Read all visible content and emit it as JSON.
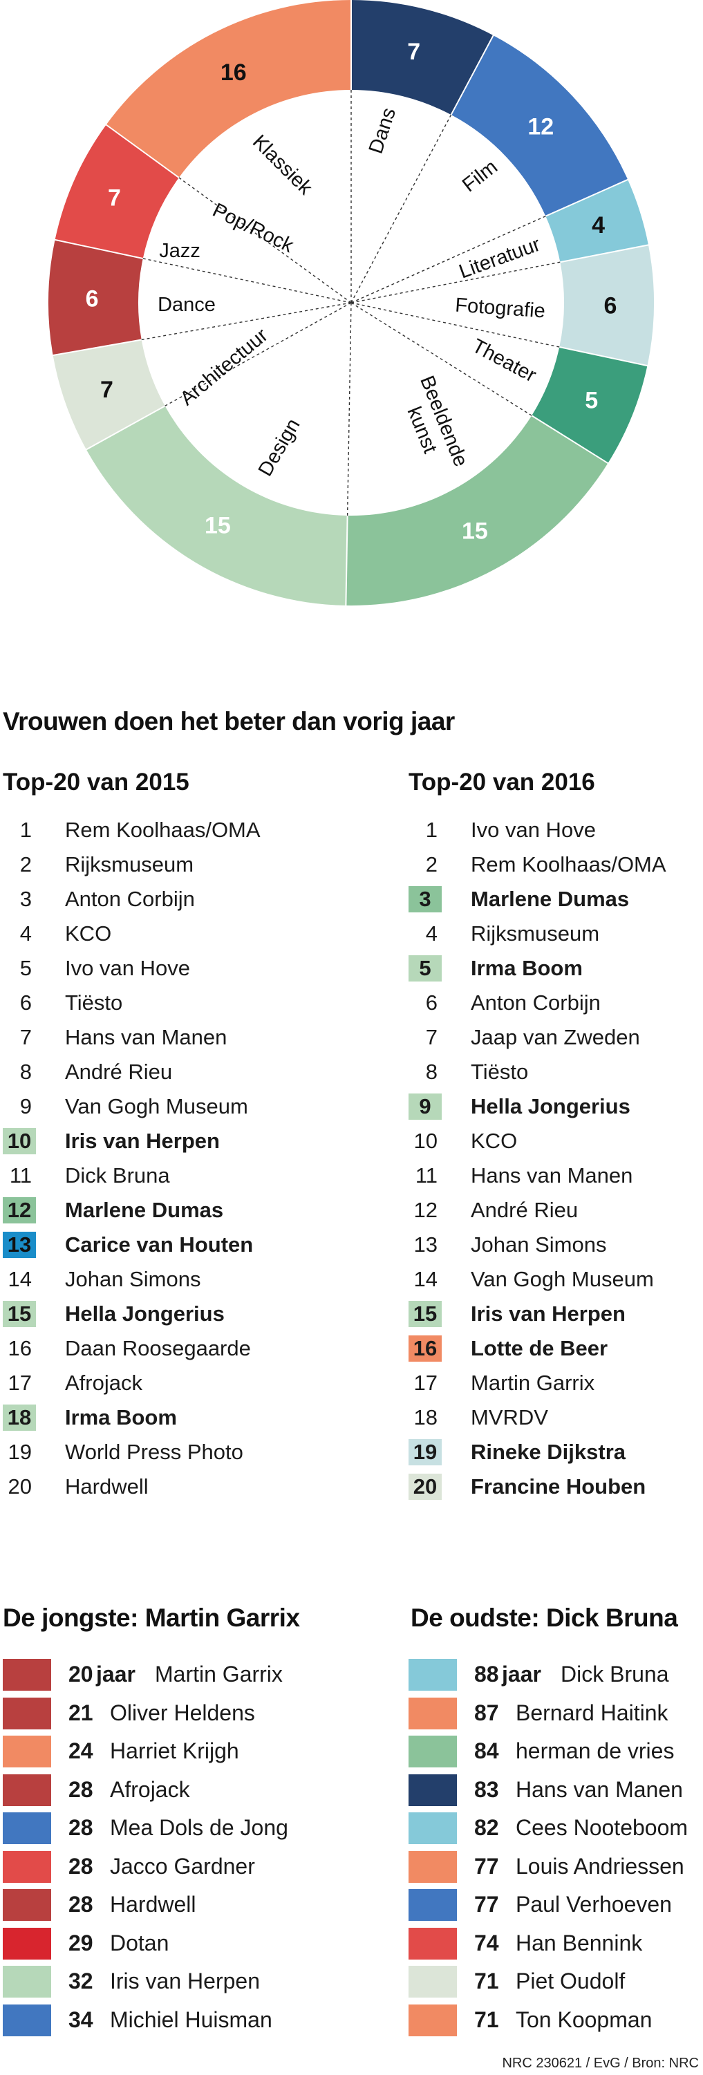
{
  "chart_data": [
    {
      "type": "pie",
      "variant": "donut",
      "segments": [
        {
          "name": "Dans",
          "value": 7,
          "color": "#233f6b"
        },
        {
          "name": "Film",
          "value": 12,
          "color": "#4177c0"
        },
        {
          "name": "Literatuur",
          "value": 4,
          "color": "#85c9d9"
        },
        {
          "name": "Fotografie",
          "value": 6,
          "color": "#c7e0e2"
        },
        {
          "name": "Theater",
          "value": 5,
          "color": "#3b9e7c"
        },
        {
          "name": "Beeldende kunst",
          "value": 15,
          "color": "#8bc39a"
        },
        {
          "name": "Design",
          "value": 15,
          "color": "#b6d8b9"
        },
        {
          "name": "Architectuur",
          "value": 7,
          "color": "#dce5d8"
        },
        {
          "name": "Dance",
          "value": 6,
          "color": "#b8403f"
        },
        {
          "name": "Jazz",
          "value": null,
          "color": null
        },
        {
          "name": "Pop/Rock",
          "value": 7,
          "color": "#e24b49"
        },
        {
          "name": "Klassiek",
          "value": 16,
          "color": "#f18a63"
        }
      ]
    },
    {
      "type": "table",
      "title": "Vrouwen doen het beter dan vorig jaar",
      "columns": [
        {
          "title": "Top-20 van 2015",
          "rows": [
            {
              "rank": "1",
              "name": "Rem Koolhaas/OMA"
            },
            {
              "rank": "2",
              "name": "Rijksmuseum"
            },
            {
              "rank": "3",
              "name": "Anton Corbijn"
            },
            {
              "rank": "4",
              "name": "KCO"
            },
            {
              "rank": "5",
              "name": "Ivo van Hove"
            },
            {
              "rank": "6",
              "name": "Tiësto"
            },
            {
              "rank": "7",
              "name": "Hans van Manen"
            },
            {
              "rank": "8",
              "name": "André Rieu"
            },
            {
              "rank": "9",
              "name": "Van Gogh Museum"
            },
            {
              "rank": "10",
              "name": "Iris van Herpen",
              "highlight": "#b6d8b9"
            },
            {
              "rank": "11",
              "name": "Dick Bruna"
            },
            {
              "rank": "12",
              "name": "Marlene Dumas",
              "highlight": "#8bc39a"
            },
            {
              "rank": "13",
              "name": "Carice van Houten",
              "highlight": "#1a8dc9"
            },
            {
              "rank": "14",
              "name": "Johan Simons"
            },
            {
              "rank": "15",
              "name": "Hella Jongerius",
              "highlight": "#b6d8b9"
            },
            {
              "rank": "16",
              "name": "Daan Roosegaarde"
            },
            {
              "rank": "17",
              "name": "Afrojack"
            },
            {
              "rank": "18",
              "name": "Irma Boom",
              "highlight": "#b6d8b9"
            },
            {
              "rank": "19",
              "name": "World Press Photo"
            },
            {
              "rank": "20",
              "name": "Hardwell"
            }
          ]
        },
        {
          "title": "Top-20 van 2016",
          "rows": [
            {
              "rank": "1",
              "name": "Ivo van Hove"
            },
            {
              "rank": "2",
              "name": "Rem Koolhaas/OMA"
            },
            {
              "rank": "3",
              "name": "Marlene Dumas",
              "highlight": "#8bc39a"
            },
            {
              "rank": "4",
              "name": "Rijksmuseum"
            },
            {
              "rank": "5",
              "name": "Irma Boom",
              "highlight": "#b6d8b9"
            },
            {
              "rank": "6",
              "name": "Anton Corbijn"
            },
            {
              "rank": "7",
              "name": "Jaap van Zweden"
            },
            {
              "rank": "8",
              "name": "Tiësto"
            },
            {
              "rank": "9",
              "name": "Hella Jongerius",
              "highlight": "#b6d8b9"
            },
            {
              "rank": "10",
              "name": "KCO"
            },
            {
              "rank": "11",
              "name": "Hans van Manen"
            },
            {
              "rank": "12",
              "name": "André Rieu"
            },
            {
              "rank": "13",
              "name": "Johan Simons"
            },
            {
              "rank": "14",
              "name": "Van Gogh Museum"
            },
            {
              "rank": "15",
              "name": "Iris van Herpen",
              "highlight": "#b6d8b9"
            },
            {
              "rank": "16",
              "name": "Lotte de Beer",
              "highlight": "#f18a63"
            },
            {
              "rank": "17",
              "name": "Martin Garrix"
            },
            {
              "rank": "18",
              "name": "MVRDV"
            },
            {
              "rank": "19",
              "name": "Rineke Dijkstra",
              "highlight": "#c7e0e2"
            },
            {
              "rank": "20",
              "name": "Francine Houben",
              "highlight": "#dce5d8"
            }
          ]
        }
      ]
    },
    {
      "type": "table",
      "title": "De jongste: Martin Garrix",
      "rows": [
        {
          "age": "20",
          "unit": "jaar",
          "name": "Martin Garrix",
          "color": "#b8403f"
        },
        {
          "age": "21",
          "name": "Oliver Heldens",
          "color": "#b8403f"
        },
        {
          "age": "24",
          "name": "Harriet Krijgh",
          "color": "#f18a63"
        },
        {
          "age": "28",
          "name": "Afrojack",
          "color": "#b8403f"
        },
        {
          "age": "28",
          "name": "Mea Dols de Jong",
          "color": "#4177c0"
        },
        {
          "age": "28",
          "name": "Jacco Gardner",
          "color": "#e24b49"
        },
        {
          "age": "28",
          "name": "Hardwell",
          "color": "#b8403f"
        },
        {
          "age": "29",
          "name": "Dotan",
          "color": "#d8252e"
        },
        {
          "age": "32",
          "name": "Iris van Herpen",
          "color": "#b6d8b9"
        },
        {
          "age": "34",
          "name": "Michiel Huisman",
          "color": "#4177c0"
        }
      ]
    },
    {
      "type": "table",
      "title": "De oudste: Dick Bruna",
      "rows": [
        {
          "age": "88",
          "unit": "jaar",
          "name": "Dick Bruna",
          "color": "#85c9d9"
        },
        {
          "age": "87",
          "name": "Bernard Haitink",
          "color": "#f18a63"
        },
        {
          "age": "84",
          "name": "herman de vries",
          "color": "#8bc39a"
        },
        {
          "age": "83",
          "name": "Hans van Manen",
          "color": "#233f6b"
        },
        {
          "age": "82",
          "name": "Cees Nooteboom",
          "color": "#85c9d9"
        },
        {
          "age": "77",
          "name": "Louis Andriessen",
          "color": "#f18a63"
        },
        {
          "age": "77",
          "name": "Paul Verhoeven",
          "color": "#4177c0"
        },
        {
          "age": "74",
          "name": "Han Bennink",
          "color": "#e24b49"
        },
        {
          "age": "71",
          "name": "Piet Oudolf",
          "color": "#dce5d8"
        },
        {
          "age": "71",
          "name": "Ton Koopman",
          "color": "#f18a63"
        }
      ]
    }
  ],
  "credit": "NRC 230621 / EvG / Bron: NRC"
}
